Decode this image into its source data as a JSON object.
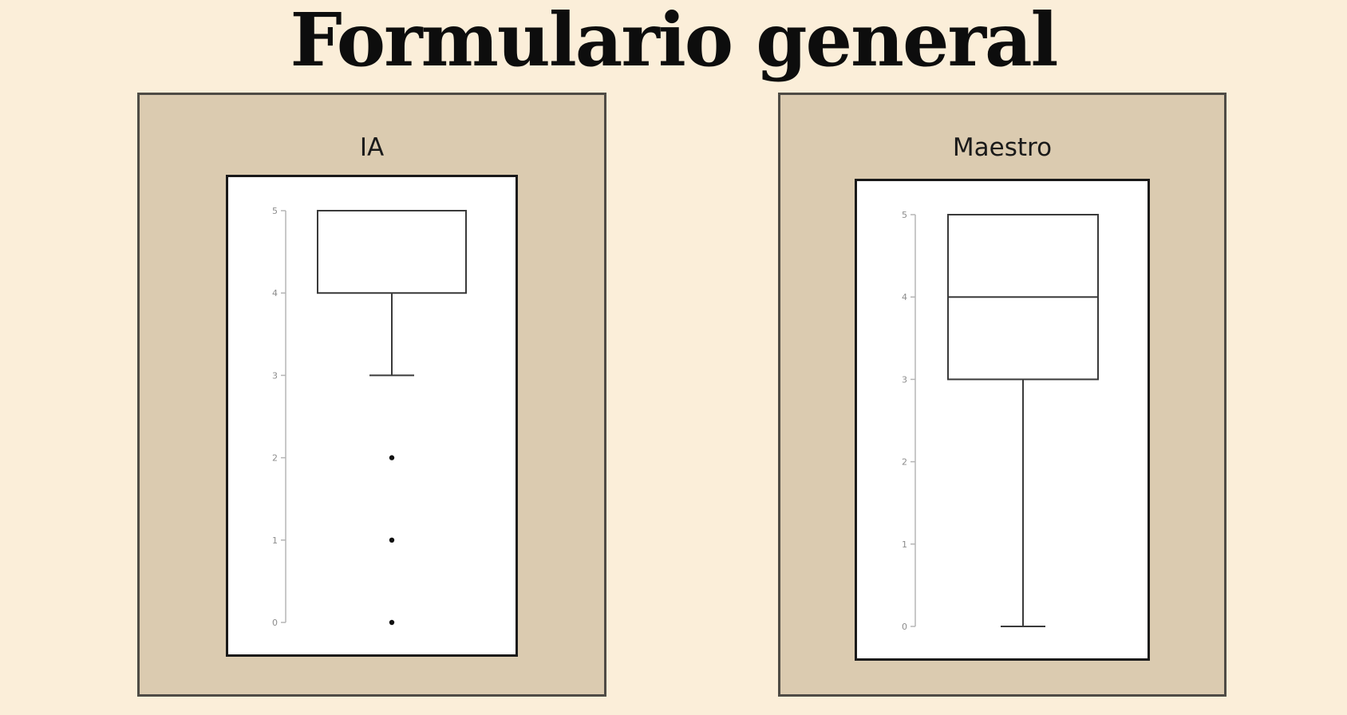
{
  "title": "Formulario general",
  "colors": {
    "background": "#fbeed9",
    "panel": "#dbcbb0",
    "panel_border": "#4e4b45",
    "plot_background": "#ffffff",
    "box_stroke": "#3a3a3a",
    "axis": "#b5b5b5"
  },
  "chart_data": [
    {
      "type": "box",
      "title": "IA",
      "ylim": [
        0,
        5
      ],
      "yticks": [
        "0",
        "1",
        "2",
        "3",
        "4",
        "5"
      ],
      "grid": false,
      "box": {
        "whisker_low": 3,
        "q1": 4,
        "median": 5,
        "q3": 5,
        "whisker_high": 5
      },
      "outliers": [
        2,
        1,
        0
      ]
    },
    {
      "type": "box",
      "title": "Maestro",
      "ylim": [
        0,
        5
      ],
      "yticks": [
        "0",
        "1",
        "2",
        "3",
        "4",
        "5"
      ],
      "grid": false,
      "box": {
        "whisker_low": 0,
        "q1": 3,
        "median": 4,
        "q3": 5,
        "whisker_high": 5
      },
      "outliers": []
    }
  ]
}
